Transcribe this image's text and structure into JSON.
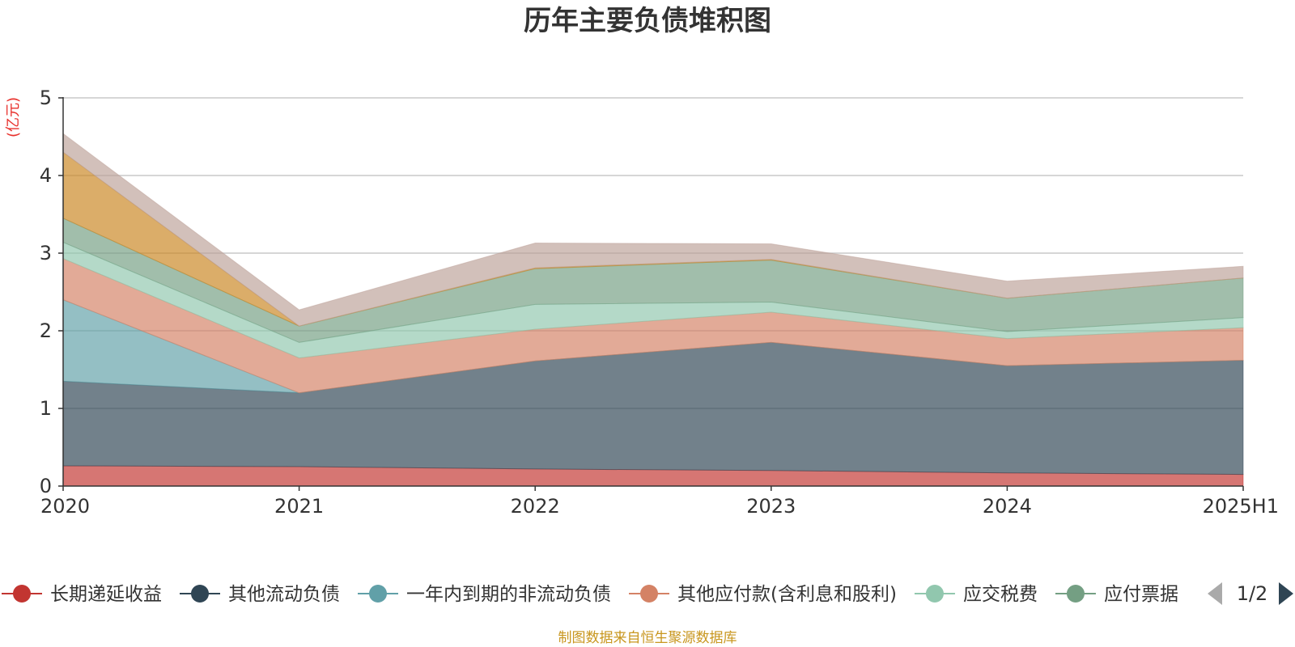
{
  "chart_data": {
    "type": "area",
    "stacked": true,
    "title": "历年主要负债堆积图",
    "unit_label": "(亿元)",
    "categories": [
      "2020",
      "2021",
      "2022",
      "2023",
      "2024",
      "2025H1"
    ],
    "ylim": [
      0,
      5
    ],
    "yticks": [
      "0",
      "1",
      "2",
      "3",
      "4",
      "5"
    ],
    "grid": true,
    "series": [
      {
        "name": "长期递延收益",
        "color": "#c23531",
        "legend_color": "#c23531",
        "values": [
          0.26,
          0.25,
          0.22,
          0.2,
          0.17,
          0.15
        ]
      },
      {
        "name": "其他流动负债",
        "color": "#2f4554",
        "legend_color": "#2f4554",
        "values": [
          1.09,
          0.95,
          1.39,
          1.65,
          1.38,
          1.47
        ]
      },
      {
        "name": "一年内到期的非流动负债",
        "color": "#61a0a8",
        "legend_color": "#61a0a8",
        "values": [
          1.05,
          0.0,
          0.0,
          0.0,
          0.0,
          0.0
        ]
      },
      {
        "name": "其他应付款(含利息和股利)",
        "color": "#d48265",
        "legend_color": "#d48265",
        "values": [
          0.53,
          0.45,
          0.41,
          0.39,
          0.35,
          0.42
        ]
      },
      {
        "name": "应交税费",
        "color": "#91c7ae",
        "legend_color": "#91c7ae",
        "values": [
          0.21,
          0.2,
          0.32,
          0.13,
          0.09,
          0.13
        ]
      },
      {
        "name": "应付票据",
        "color": "#749f83",
        "legend_color": "#749f83",
        "values": [
          0.31,
          0.21,
          0.46,
          0.54,
          0.43,
          0.51
        ]
      },
      {
        "name": "",
        "color": "#ca8622",
        "values": [
          0.85,
          0.0,
          0.01,
          0.01,
          0.0,
          0.0
        ]
      },
      {
        "name": "",
        "color": "#bda29a",
        "values": [
          0.24,
          0.21,
          0.32,
          0.2,
          0.22,
          0.15
        ]
      }
    ],
    "legend": {
      "position": "bottom",
      "visible_items": [
        "长期递延收益",
        "其他流动负债",
        "一年内到期的非流动负债",
        "其他应付款(含利息和股利)",
        "应交税费",
        "应付票据"
      ],
      "page": "1/2"
    }
  },
  "source_text": "制图数据来自恒生聚源数据库"
}
